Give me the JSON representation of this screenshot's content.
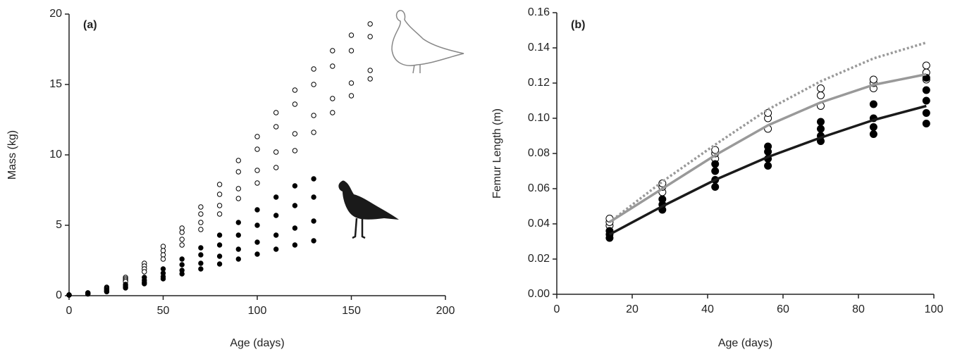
{
  "chart_data": [
    {
      "type": "scatter",
      "annotation": "(a)",
      "xlabel": "Age (days)",
      "ylabel": "Mass (kg)",
      "xlim": [
        0,
        200
      ],
      "xticks": [
        0,
        50,
        100,
        150,
        200
      ],
      "ylim": [
        0,
        20
      ],
      "yticks": [
        0,
        5,
        10,
        15,
        20
      ],
      "series": [
        {
          "color": "#000000",
          "marker": "open",
          "x": [
            0,
            10,
            20,
            30,
            40,
            50,
            60,
            70,
            80,
            90,
            100,
            110,
            120,
            130,
            140,
            150,
            160
          ],
          "values": [
            0.05,
            0.2,
            0.6,
            1.3,
            2.3,
            3.5,
            4.8,
            6.3,
            7.9,
            9.6,
            11.3,
            13,
            14.6,
            16.1,
            17.4,
            18.5,
            19.3
          ]
        },
        {
          "color": "#000000",
          "marker": "open",
          "x": [
            0,
            10,
            20,
            30,
            40,
            50,
            60,
            70,
            80,
            90,
            100,
            110,
            120,
            130,
            140,
            150,
            160
          ],
          "values": [
            0.05,
            0.2,
            0.55,
            1.2,
            2.1,
            3.2,
            4.5,
            5.8,
            7.2,
            8.8,
            10.4,
            12,
            13.6,
            15,
            16.3,
            17.4,
            18.4
          ]
        },
        {
          "color": "#000000",
          "marker": "open",
          "x": [
            0,
            10,
            20,
            30,
            40,
            50,
            60,
            70,
            80,
            90,
            100,
            110,
            120,
            130,
            140,
            150,
            160
          ],
          "values": [
            0.05,
            0.18,
            0.5,
            1.1,
            1.9,
            2.9,
            4,
            5.2,
            6.4,
            7.6,
            8.9,
            10.2,
            11.5,
            12.8,
            14,
            15.1,
            16
          ]
        },
        {
          "color": "#000000",
          "marker": "open",
          "x": [
            0,
            10,
            20,
            30,
            40,
            50,
            60,
            70,
            80,
            90,
            100,
            110,
            120,
            130,
            140,
            150,
            160
          ],
          "values": [
            0.05,
            0.17,
            0.45,
            1,
            1.7,
            2.6,
            3.6,
            4.7,
            5.8,
            6.9,
            8,
            9.1,
            10.3,
            11.6,
            13,
            14.2,
            15.4
          ]
        },
        {
          "color": "#000000",
          "marker": "filled",
          "x": [
            0,
            10,
            20,
            30,
            40,
            50,
            60,
            70,
            80,
            90,
            100,
            110,
            120,
            130
          ],
          "values": [
            0.05,
            0.15,
            0.4,
            0.8,
            1.3,
            1.9,
            2.6,
            3.4,
            4.3,
            5.2,
            6.1,
            7,
            7.8,
            8.3
          ]
        },
        {
          "color": "#000000",
          "marker": "filled",
          "x": [
            0,
            10,
            20,
            30,
            40,
            50,
            60,
            70,
            80,
            90,
            100,
            110,
            120,
            130
          ],
          "values": [
            0.05,
            0.15,
            0.35,
            0.7,
            1.1,
            1.6,
            2.2,
            2.9,
            3.6,
            4.3,
            5,
            5.7,
            6.4,
            7
          ]
        },
        {
          "color": "#000000",
          "marker": "filled",
          "x": [
            0,
            10,
            20,
            30,
            40,
            50,
            60,
            70,
            80,
            90,
            100,
            110,
            120,
            130
          ],
          "values": [
            0.05,
            0.13,
            0.3,
            0.6,
            0.95,
            1.35,
            1.8,
            2.3,
            2.8,
            3.3,
            3.8,
            4.3,
            4.8,
            5.3
          ]
        },
        {
          "color": "#000000",
          "marker": "filled",
          "x": [
            0,
            10,
            20,
            30,
            40,
            50,
            60,
            70,
            80,
            90,
            100,
            110,
            120,
            130
          ],
          "values": [
            0.05,
            0.12,
            0.28,
            0.55,
            0.85,
            1.2,
            1.55,
            1.9,
            2.25,
            2.6,
            2.95,
            3.3,
            3.6,
            3.9
          ]
        }
      ]
    },
    {
      "type": "scatter",
      "annotation": "(b)",
      "xlabel": "Age (days)",
      "ylabel": "Femur Length (m)",
      "xlim": [
        0,
        100
      ],
      "xticks": [
        0,
        20,
        40,
        60,
        80,
        100
      ],
      "ylim": [
        0,
        0.16
      ],
      "yticks": [
        {
          "value": 0,
          "label": "0.00"
        },
        0.02,
        0.04,
        0.06,
        0.08,
        {
          "value": 0.1,
          "label": "0.10"
        },
        0.12,
        0.14,
        0.16
      ],
      "series": [
        {
          "color": "#000000",
          "marker": "open",
          "x": [
            14,
            14,
            14,
            28,
            28,
            28,
            42,
            42,
            42,
            56,
            56,
            56,
            70,
            70,
            70,
            84,
            84,
            84,
            98,
            98,
            98
          ],
          "values": [
            0.039,
            0.041,
            0.043,
            0.058,
            0.061,
            0.063,
            0.077,
            0.08,
            0.082,
            0.094,
            0.1,
            0.103,
            0.107,
            0.113,
            0.117,
            0.117,
            0.12,
            0.122,
            0.122,
            0.126,
            0.13
          ]
        },
        {
          "color": "#000000",
          "marker": "filled",
          "x": [
            14,
            14,
            14,
            28,
            28,
            28,
            42,
            42,
            42,
            42,
            56,
            56,
            56,
            56,
            70,
            70,
            70,
            70,
            84,
            84,
            84,
            84,
            98,
            98,
            98,
            98,
            98
          ],
          "values": [
            0.032,
            0.034,
            0.036,
            0.048,
            0.051,
            0.054,
            0.061,
            0.065,
            0.07,
            0.074,
            0.073,
            0.077,
            0.081,
            0.084,
            0.087,
            0.09,
            0.094,
            0.098,
            0.091,
            0.095,
            0.1,
            0.108,
            0.097,
            0.103,
            0.11,
            0.116,
            0.123
          ]
        },
        {
          "color": "#999999",
          "marker": "line",
          "dashed": true,
          "x": [
            14,
            28,
            42,
            56,
            70,
            84,
            98
          ],
          "values": [
            0.041,
            0.064,
            0.085,
            0.105,
            0.121,
            0.134,
            0.143
          ]
        },
        {
          "color": "#999999",
          "marker": "line",
          "x": [
            14,
            28,
            42,
            56,
            70,
            84,
            98
          ],
          "values": [
            0.041,
            0.06,
            0.079,
            0.096,
            0.109,
            0.119,
            0.125
          ]
        },
        {
          "color": "#1a1a1a",
          "marker": "line",
          "x": [
            14,
            28,
            42,
            56,
            70,
            84,
            98
          ],
          "values": [
            0.034,
            0.05,
            0.065,
            0.078,
            0.089,
            0.099,
            0.107
          ]
        }
      ]
    }
  ]
}
